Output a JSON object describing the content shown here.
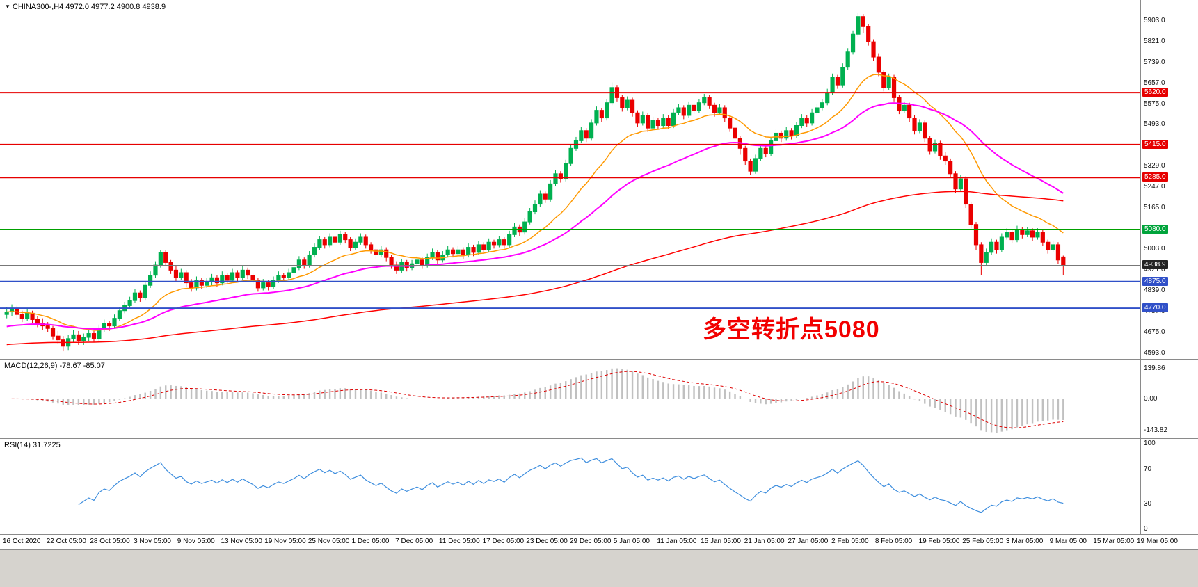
{
  "header": {
    "symbol": "CHINA300-",
    "timeframe": "H4",
    "open": "4972.0",
    "high": "4977.2",
    "low": "4900.8",
    "close": "4938.9",
    "display": "CHINA300-,H4 4972.0 4977.2 4900.8 4938.9"
  },
  "annotation": {
    "text": "多空转折点5080",
    "color": "#F20000"
  },
  "colors": {
    "bull": "#00B050",
    "bear": "#EA0000",
    "macd_hist": "#C0C0C0",
    "macd_signal": "#DD0000",
    "rsi_line": "#3E8EDE",
    "separator": "#8A8A8A",
    "bottom_bar": "#D6D3CE"
  },
  "price_axis": {
    "ticks": [
      "5903.0",
      "5821.0",
      "5739.0",
      "5657.0",
      "5575.0",
      "5493.0",
      "5329.0",
      "5247.0",
      "5165.0",
      "5003.0",
      "4921.0",
      "4839.0",
      "4757.0",
      "4675.0",
      "4593.0"
    ],
    "badges": [
      {
        "label": "5620.0",
        "value": 5620.0,
        "bg": "#E60000"
      },
      {
        "label": "5415.0",
        "value": 5415.0,
        "bg": "#E60000"
      },
      {
        "label": "5285.0",
        "value": 5285.0,
        "bg": "#E60000"
      },
      {
        "label": "5080.0",
        "value": 5080.0,
        "bg": "#00A43B"
      },
      {
        "label": "4938.9",
        "value": 4938.9,
        "bg": "#222222"
      },
      {
        "label": "4875.0",
        "value": 4875.0,
        "bg": "#3050C8"
      },
      {
        "label": "4770.0",
        "value": 4770.0,
        "bg": "#3050C8"
      }
    ]
  },
  "macd_panel": {
    "label": "MACD(12,26,9)",
    "values": "-78.67 -85.07",
    "ticks": [
      {
        "label": "139.86",
        "value": 139.86
      },
      {
        "label": "0.00",
        "value": 0
      },
      {
        "label": "-143.82",
        "value": -143.82
      }
    ]
  },
  "rsi_panel": {
    "label": "RSI(14)",
    "value": "31.7225",
    "ticks": [
      {
        "label": "100",
        "value": 100
      },
      {
        "label": "70",
        "value": 70
      },
      {
        "label": "30",
        "value": 30
      },
      {
        "label": "0",
        "value": 0
      }
    ]
  },
  "time_axis": {
    "labels": [
      "16 Oct 2020",
      "22 Oct 05:00",
      "28 Oct 05:00",
      "3 Nov 05:00",
      "9 Nov 05:00",
      "13 Nov 05:00",
      "19 Nov 05:00",
      "25 Nov 05:00",
      "1 Dec 05:00",
      "7 Dec 05:00",
      "11 Dec 05:00",
      "17 Dec 05:00",
      "23 Dec 05:00",
      "29 Dec 05:00",
      "5 Jan 05:00",
      "11 Jan 05:00",
      "15 Jan 05:00",
      "21 Jan 05:00",
      "27 Jan 05:00",
      "2 Feb 05:00",
      "8 Feb 05:00",
      "19 Feb 05:00",
      "25 Feb 05:00",
      "3 Mar 05:00",
      "9 Mar 05:00",
      "15 Mar 05:00",
      "19 Mar 05:00"
    ]
  },
  "chart_data": {
    "type": "candlestick",
    "title": "CHINA300- H4",
    "x_range": [
      "16 Oct 2020",
      "19 Mar 05:00"
    ],
    "price_range": [
      4570,
      5985
    ],
    "hlines": [
      {
        "value": 5620.0,
        "color": "#E60000",
        "width": 2
      },
      {
        "value": 5415.0,
        "color": "#E60000",
        "width": 2
      },
      {
        "value": 5285.0,
        "color": "#E60000",
        "width": 2
      },
      {
        "value": 5080.0,
        "color": "#00A000",
        "width": 2
      },
      {
        "value": 4938.9,
        "color": "#777777",
        "width": 1,
        "current_price": true
      },
      {
        "value": 4875.0,
        "color": "#3050C8",
        "width": 2
      },
      {
        "value": 4770.0,
        "color": "#3050C8",
        "width": 2
      }
    ],
    "indicators": {
      "moving_averages": [
        {
          "name": "fast",
          "period": 18,
          "color": "#FF9900",
          "width": 1.5,
          "seed_offset": 0
        },
        {
          "name": "medium",
          "period": 45,
          "color": "#FF00FF",
          "width": 2,
          "seed_offset": -60
        },
        {
          "name": "slow",
          "period": 190,
          "color": "#FF0000",
          "width": 1.5,
          "seed_offset": -130
        }
      ],
      "macd": {
        "fast": 12,
        "slow": 26,
        "signal": 9,
        "last_main": -78.67,
        "last_signal": -85.07
      },
      "rsi": {
        "period": 14,
        "last": 31.7225,
        "levels": [
          70,
          30
        ]
      }
    },
    "candles": [
      [
        4745,
        4775,
        4730,
        4755
      ],
      [
        4755,
        4785,
        4740,
        4770
      ],
      [
        4770,
        4780,
        4730,
        4745
      ],
      [
        4745,
        4760,
        4715,
        4730
      ],
      [
        4730,
        4765,
        4720,
        4750
      ],
      [
        4750,
        4760,
        4710,
        4725
      ],
      [
        4725,
        4740,
        4695,
        4710
      ],
      [
        4710,
        4730,
        4685,
        4700
      ],
      [
        4700,
        4715,
        4675,
        4690
      ],
      [
        4690,
        4700,
        4645,
        4660
      ],
      [
        4660,
        4680,
        4630,
        4645
      ],
      [
        4645,
        4660,
        4600,
        4620
      ],
      [
        4620,
        4665,
        4605,
        4650
      ],
      [
        4650,
        4685,
        4635,
        4665
      ],
      [
        4665,
        4680,
        4625,
        4640
      ],
      [
        4640,
        4670,
        4625,
        4655
      ],
      [
        4655,
        4685,
        4640,
        4670
      ],
      [
        4670,
        4680,
        4635,
        4650
      ],
      [
        4650,
        4705,
        4640,
        4690
      ],
      [
        4690,
        4725,
        4675,
        4710
      ],
      [
        4710,
        4720,
        4680,
        4700
      ],
      [
        4700,
        4745,
        4690,
        4730
      ],
      [
        4730,
        4775,
        4720,
        4760
      ],
      [
        4760,
        4795,
        4750,
        4780
      ],
      [
        4780,
        4815,
        4770,
        4800
      ],
      [
        4800,
        4845,
        4790,
        4830
      ],
      [
        4830,
        4840,
        4795,
        4810
      ],
      [
        4810,
        4875,
        4800,
        4860
      ],
      [
        4860,
        4915,
        4850,
        4900
      ],
      [
        4900,
        4955,
        4890,
        4940
      ],
      [
        4940,
        5000,
        4930,
        4990
      ],
      [
        4990,
        5000,
        4935,
        4950
      ],
      [
        4950,
        4960,
        4905,
        4920
      ],
      [
        4920,
        4935,
        4875,
        4890
      ],
      [
        4890,
        4925,
        4880,
        4910
      ],
      [
        4910,
        4920,
        4855,
        4870
      ],
      [
        4870,
        4885,
        4835,
        4850
      ],
      [
        4850,
        4895,
        4840,
        4880
      ],
      [
        4880,
        4890,
        4845,
        4860
      ],
      [
        4860,
        4890,
        4850,
        4875
      ],
      [
        4875,
        4905,
        4860,
        4890
      ],
      [
        4890,
        4900,
        4855,
        4870
      ],
      [
        4870,
        4915,
        4860,
        4900
      ],
      [
        4900,
        4910,
        4865,
        4880
      ],
      [
        4880,
        4925,
        4870,
        4910
      ],
      [
        4910,
        4920,
        4875,
        4890
      ],
      [
        4890,
        4935,
        4880,
        4920
      ],
      [
        4920,
        4930,
        4885,
        4900
      ],
      [
        4900,
        4910,
        4865,
        4880
      ],
      [
        4880,
        4890,
        4835,
        4850
      ],
      [
        4850,
        4885,
        4840,
        4870
      ],
      [
        4870,
        4880,
        4840,
        4855
      ],
      [
        4855,
        4895,
        4845,
        4880
      ],
      [
        4880,
        4915,
        4870,
        4900
      ],
      [
        4900,
        4910,
        4875,
        4890
      ],
      [
        4890,
        4925,
        4880,
        4910
      ],
      [
        4910,
        4945,
        4900,
        4930
      ],
      [
        4930,
        4975,
        4920,
        4960
      ],
      [
        4960,
        4970,
        4925,
        4940
      ],
      [
        4940,
        4995,
        4930,
        4980
      ],
      [
        4980,
        5025,
        4970,
        5010
      ],
      [
        5010,
        5055,
        5000,
        5040
      ],
      [
        5040,
        5050,
        5005,
        5020
      ],
      [
        5020,
        5065,
        5010,
        5050
      ],
      [
        5050,
        5060,
        5015,
        5030
      ],
      [
        5030,
        5075,
        5020,
        5060
      ],
      [
        5060,
        5070,
        5025,
        5040
      ],
      [
        5040,
        5050,
        4995,
        5010
      ],
      [
        5010,
        5045,
        5000,
        5030
      ],
      [
        5030,
        5065,
        5020,
        5050
      ],
      [
        5050,
        5060,
        5005,
        5020
      ],
      [
        5020,
        5030,
        4985,
        5000
      ],
      [
        5000,
        5010,
        4965,
        4980
      ],
      [
        4980,
        5015,
        4970,
        5000
      ],
      [
        5000,
        5010,
        4955,
        4970
      ],
      [
        4970,
        4980,
        4925,
        4940
      ],
      [
        4940,
        4955,
        4905,
        4920
      ],
      [
        4920,
        4965,
        4910,
        4950
      ],
      [
        4950,
        4960,
        4915,
        4930
      ],
      [
        4930,
        4960,
        4920,
        4945
      ],
      [
        4945,
        4975,
        4935,
        4960
      ],
      [
        4960,
        4970,
        4925,
        4940
      ],
      [
        4940,
        4985,
        4930,
        4970
      ],
      [
        4970,
        5005,
        4960,
        4990
      ],
      [
        4990,
        5000,
        4945,
        4960
      ],
      [
        4960,
        4995,
        4950,
        4980
      ],
      [
        4980,
        5015,
        4970,
        5000
      ],
      [
        5000,
        5010,
        4970,
        4985
      ],
      [
        4985,
        5015,
        4975,
        5000
      ],
      [
        5000,
        5010,
        4965,
        4980
      ],
      [
        4980,
        5025,
        4970,
        5010
      ],
      [
        5010,
        5020,
        4975,
        4990
      ],
      [
        4990,
        5035,
        4980,
        5020
      ],
      [
        5020,
        5030,
        4985,
        5000
      ],
      [
        5000,
        5045,
        4990,
        5030
      ],
      [
        5030,
        5040,
        5005,
        5020
      ],
      [
        5020,
        5055,
        5010,
        5040
      ],
      [
        5040,
        5050,
        5005,
        5020
      ],
      [
        5020,
        5075,
        5010,
        5060
      ],
      [
        5060,
        5105,
        5050,
        5090
      ],
      [
        5090,
        5100,
        5055,
        5070
      ],
      [
        5070,
        5125,
        5060,
        5110
      ],
      [
        5110,
        5165,
        5100,
        5150
      ],
      [
        5150,
        5195,
        5140,
        5180
      ],
      [
        5180,
        5235,
        5170,
        5220
      ],
      [
        5220,
        5230,
        5185,
        5200
      ],
      [
        5200,
        5275,
        5190,
        5260
      ],
      [
        5260,
        5315,
        5250,
        5300
      ],
      [
        5300,
        5310,
        5265,
        5280
      ],
      [
        5280,
        5355,
        5270,
        5340
      ],
      [
        5340,
        5415,
        5330,
        5400
      ],
      [
        5400,
        5445,
        5390,
        5430
      ],
      [
        5430,
        5485,
        5420,
        5470
      ],
      [
        5470,
        5480,
        5425,
        5440
      ],
      [
        5440,
        5515,
        5430,
        5500
      ],
      [
        5500,
        5565,
        5490,
        5550
      ],
      [
        5550,
        5560,
        5505,
        5520
      ],
      [
        5520,
        5595,
        5510,
        5580
      ],
      [
        5580,
        5660,
        5570,
        5640
      ],
      [
        5640,
        5650,
        5585,
        5600
      ],
      [
        5600,
        5610,
        5545,
        5560
      ],
      [
        5560,
        5605,
        5550,
        5590
      ],
      [
        5590,
        5600,
        5525,
        5540
      ],
      [
        5540,
        5550,
        5485,
        5500
      ],
      [
        5500,
        5545,
        5490,
        5530
      ],
      [
        5530,
        5540,
        5465,
        5480
      ],
      [
        5480,
        5525,
        5470,
        5510
      ],
      [
        5510,
        5520,
        5475,
        5490
      ],
      [
        5490,
        5535,
        5480,
        5520
      ],
      [
        5520,
        5530,
        5475,
        5490
      ],
      [
        5490,
        5555,
        5480,
        5540
      ],
      [
        5540,
        5575,
        5530,
        5560
      ],
      [
        5560,
        5570,
        5515,
        5530
      ],
      [
        5530,
        5585,
        5520,
        5570
      ],
      [
        5570,
        5580,
        5535,
        5550
      ],
      [
        5550,
        5595,
        5540,
        5580
      ],
      [
        5580,
        5615,
        5570,
        5600
      ],
      [
        5600,
        5610,
        5555,
        5570
      ],
      [
        5570,
        5580,
        5525,
        5540
      ],
      [
        5540,
        5575,
        5530,
        5560
      ],
      [
        5560,
        5570,
        5505,
        5520
      ],
      [
        5520,
        5530,
        5465,
        5480
      ],
      [
        5480,
        5490,
        5425,
        5440
      ],
      [
        5440,
        5450,
        5375,
        5400
      ],
      [
        5400,
        5410,
        5335,
        5350
      ],
      [
        5350,
        5360,
        5295,
        5310
      ],
      [
        5310,
        5375,
        5300,
        5360
      ],
      [
        5360,
        5415,
        5350,
        5400
      ],
      [
        5400,
        5410,
        5365,
        5380
      ],
      [
        5380,
        5445,
        5370,
        5430
      ],
      [
        5430,
        5475,
        5420,
        5460
      ],
      [
        5460,
        5470,
        5425,
        5440
      ],
      [
        5440,
        5485,
        5430,
        5470
      ],
      [
        5470,
        5480,
        5435,
        5450
      ],
      [
        5450,
        5505,
        5440,
        5490
      ],
      [
        5490,
        5535,
        5480,
        5520
      ],
      [
        5520,
        5530,
        5485,
        5500
      ],
      [
        5500,
        5555,
        5490,
        5540
      ],
      [
        5540,
        5575,
        5530,
        5560
      ],
      [
        5560,
        5595,
        5550,
        5580
      ],
      [
        5580,
        5635,
        5570,
        5620
      ],
      [
        5620,
        5695,
        5610,
        5680
      ],
      [
        5680,
        5690,
        5635,
        5650
      ],
      [
        5650,
        5735,
        5640,
        5720
      ],
      [
        5720,
        5795,
        5710,
        5780
      ],
      [
        5780,
        5865,
        5770,
        5850
      ],
      [
        5850,
        5935,
        5840,
        5920
      ],
      [
        5920,
        5930,
        5855,
        5880
      ],
      [
        5880,
        5890,
        5805,
        5820
      ],
      [
        5820,
        5830,
        5745,
        5760
      ],
      [
        5760,
        5775,
        5685,
        5700
      ],
      [
        5700,
        5710,
        5625,
        5640
      ],
      [
        5640,
        5695,
        5630,
        5680
      ],
      [
        5680,
        5690,
        5585,
        5600
      ],
      [
        5600,
        5610,
        5535,
        5550
      ],
      [
        5550,
        5585,
        5540,
        5570
      ],
      [
        5570,
        5580,
        5505,
        5520
      ],
      [
        5520,
        5530,
        5455,
        5470
      ],
      [
        5470,
        5515,
        5460,
        5500
      ],
      [
        5500,
        5510,
        5425,
        5440
      ],
      [
        5440,
        5450,
        5375,
        5390
      ],
      [
        5390,
        5435,
        5380,
        5420
      ],
      [
        5420,
        5430,
        5355,
        5370
      ],
      [
        5370,
        5385,
        5335,
        5350
      ],
      [
        5350,
        5360,
        5285,
        5300
      ],
      [
        5300,
        5310,
        5225,
        5240
      ],
      [
        5240,
        5295,
        5230,
        5280
      ],
      [
        5280,
        5290,
        5165,
        5180
      ],
      [
        5180,
        5190,
        5085,
        5100
      ],
      [
        5100,
        5110,
        5000,
        5020
      ],
      [
        5020,
        5030,
        4900,
        4950
      ],
      [
        4950,
        5005,
        4940,
        4990
      ],
      [
        4990,
        5045,
        4980,
        5030
      ],
      [
        5030,
        5040,
        4985,
        5000
      ],
      [
        5000,
        5065,
        4990,
        5050
      ],
      [
        5050,
        5085,
        5040,
        5070
      ],
      [
        5070,
        5080,
        5025,
        5040
      ],
      [
        5040,
        5095,
        5030,
        5080
      ],
      [
        5080,
        5090,
        5045,
        5060
      ],
      [
        5060,
        5090,
        5050,
        5075
      ],
      [
        5075,
        5085,
        5035,
        5050
      ],
      [
        5050,
        5085,
        5040,
        5070
      ],
      [
        5070,
        5080,
        5015,
        5030
      ],
      [
        5030,
        5040,
        4985,
        5000
      ],
      [
        5000,
        5035,
        4990,
        5020
      ],
      [
        5020,
        5030,
        4945,
        4960
      ],
      [
        4972,
        4977.2,
        4900.8,
        4938.9
      ]
    ]
  }
}
